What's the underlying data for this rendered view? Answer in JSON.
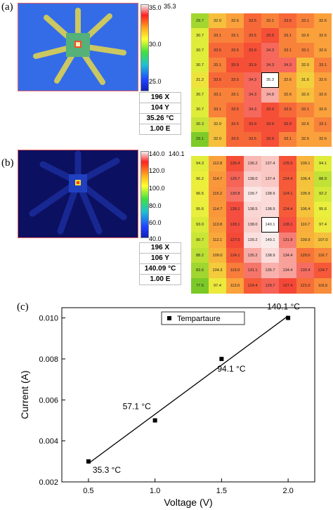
{
  "panel_a": {
    "label": "(a)",
    "scale_max": "35.0",
    "scale_max2": "35.3",
    "scale_mid": "30.0",
    "scale_min": "25.0",
    "readout": [
      "196 X",
      "104 Y",
      "35.26 °C",
      "1.00 E"
    ],
    "grid": [
      [
        "29.7",
        "32.0",
        "32.6",
        "33.5",
        "33.1",
        "33.5",
        "33.1",
        "32.6"
      ],
      [
        "30.7",
        "33.1",
        "33.1",
        "33.5",
        "33.9",
        "33.1",
        "32.6",
        "32.6"
      ],
      [
        "30.7",
        "33.5",
        "33.5",
        "33.9",
        "34.3",
        "33.1",
        "33.1",
        "32.6"
      ],
      [
        "30.7",
        "33.1",
        "33.9",
        "33.9",
        "34.3",
        "34.3",
        "32.0",
        "33.1"
      ],
      [
        "31.2",
        "33.5",
        "33.5",
        "34.3",
        "35.3",
        "32.6",
        "31.6",
        "32.6"
      ],
      [
        "30.7",
        "33.1",
        "33.1",
        "34.3",
        "34.8",
        "32.6",
        "32.0",
        "32.6"
      ],
      [
        "30.7",
        "33.1",
        "33.5",
        "34.3",
        "33.9",
        "33.5",
        "33.1",
        "32.6"
      ],
      [
        "30.3",
        "32.0",
        "33.5",
        "33.9",
        "33.9",
        "33.9",
        "32.6",
        "33.1"
      ],
      [
        "29.1",
        "32.0",
        "33.5",
        "33.5",
        "33.9",
        "33.1",
        "32.6",
        "32.6"
      ]
    ],
    "selected": [
      4,
      4
    ]
  },
  "panel_b": {
    "label": "(b)",
    "scale_max": "140.0",
    "scale_max2": "140.1",
    "scale_ticks": [
      "120.0",
      "100.0",
      "80.0",
      "60.0"
    ],
    "scale_min": "40.0",
    "readout": [
      "196 X",
      "106 Y",
      "140.09 °C",
      "1.00 E"
    ],
    "grid": [
      [
        "94.3",
        "112.8",
        "126.4",
        "136.2",
        "137.4",
        "125.5",
        "109.1",
        "94.1"
      ],
      [
        "96.2",
        "114.7",
        "129.7",
        "138.0",
        "137.4",
        "124.4",
        "106.4",
        "88.9"
      ],
      [
        "96.5",
        "115.2",
        "130.8",
        "139.7",
        "138.9",
        "124.1",
        "105.9",
        "92.2"
      ],
      [
        "95.6",
        "114.7",
        "128.1",
        "138.5",
        "138.9",
        "124.4",
        "106.4",
        "95.6"
      ],
      [
        "93.0",
        "113.8",
        "128.1",
        "138.0",
        "140.1",
        "128.1",
        "110.7",
        "97.4"
      ],
      [
        "90.7",
        "112.1",
        "127.0",
        "139.2",
        "140.1",
        "131.8",
        "109.9",
        "107.0"
      ],
      [
        "88.2",
        "109.0",
        "124.1",
        "135.2",
        "138.9",
        "134.4",
        "120.0",
        "116.7"
      ],
      [
        "83.6",
        "104.3",
        "119.0",
        "131.1",
        "135.7",
        "134.4",
        "130.4",
        "124.7"
      ],
      [
        "77.5",
        "97.4",
        "113.0",
        "124.4",
        "129.7",
        "127.4",
        "121.0",
        "116.5"
      ]
    ],
    "selected": [
      4,
      4
    ]
  },
  "panel_c": {
    "label": "(c)"
  },
  "chart_data": {
    "type": "scatter",
    "xlabel": "Voltage (V)",
    "ylabel": "Current (A)",
    "xlim": [
      0.3,
      2.2
    ],
    "ylim": [
      0.002,
      0.0105
    ],
    "xticks": [
      "0.5",
      "1.0",
      "1.5",
      "2.0"
    ],
    "yticks": [
      "0.002",
      "0.004",
      "0.006",
      "0.008",
      "0.010"
    ],
    "grid": false,
    "legend_position": "top-center",
    "series": [
      {
        "name": "Tempartaure",
        "x": [
          0.5,
          1.0,
          1.5,
          2.0
        ],
        "y": [
          0.003,
          0.005,
          0.008,
          0.01
        ],
        "annotations": [
          "35.3 °C",
          "57.1 °C",
          "94.1 °C",
          "140.1 °C"
        ]
      }
    ],
    "fit_line": {
      "x": [
        0.5,
        2.0
      ],
      "y": [
        0.0029,
        0.0101
      ]
    }
  }
}
